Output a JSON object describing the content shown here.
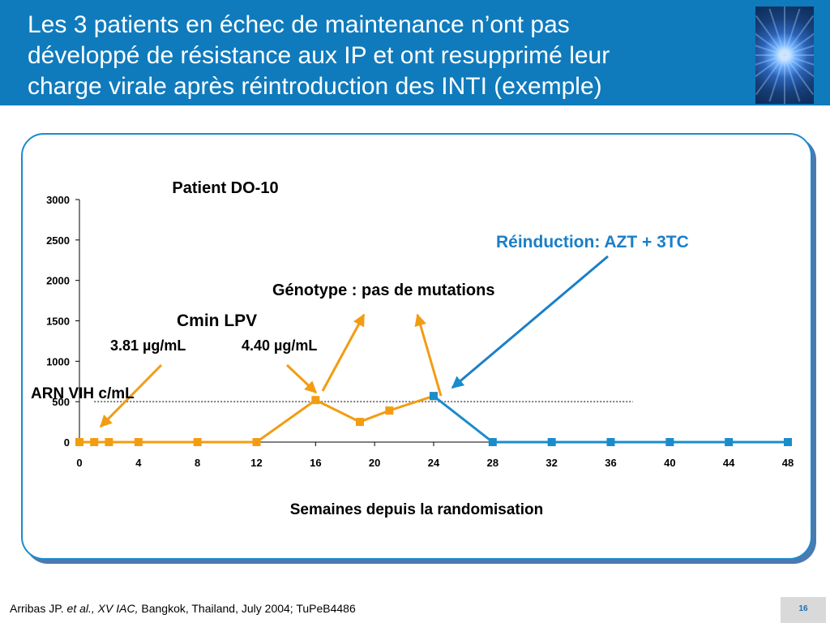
{
  "slide": {
    "title_lines": [
      "Les 3 patients en échec de maintenance n’ont pas",
      "développé de résistance aux IP et ont resupprimé leur",
      "charge virale après réintroduction des INTI (exemple)"
    ],
    "footer": {
      "author": "Arribas JP. ",
      "etal": "et al., XV IAC,",
      "rest": " Bangkok, Thailand, July 2004; TuPeB4486"
    },
    "page_number": "16"
  },
  "colors": {
    "header": "#0f7bbd",
    "orange": "#f39c12",
    "blue": "#1a8ccc",
    "annotation_blue": "#1a7fc8"
  },
  "chart_data": {
    "type": "line",
    "title": "Patient DO-10",
    "xlabel": "Semaines depuis la randomisation",
    "ylabel": "ARN VIH c/mL",
    "xlim": [
      0,
      48
    ],
    "ylim": [
      0,
      3000
    ],
    "x_ticks": [
      0,
      4,
      8,
      12,
      16,
      20,
      24,
      28,
      32,
      36,
      40,
      44,
      48
    ],
    "y_ticks": [
      0,
      500,
      1000,
      1500,
      2000,
      2500,
      3000
    ],
    "threshold_line": {
      "y": 500,
      "x_from": 1,
      "x_to": 37.5,
      "style": "dotted"
    },
    "series": [
      {
        "color": "#f39c12",
        "points": [
          [
            0,
            0
          ],
          [
            1,
            0
          ],
          [
            2,
            0
          ],
          [
            4,
            0
          ],
          [
            8,
            0
          ],
          [
            12,
            0
          ],
          [
            16,
            520
          ],
          [
            19,
            250
          ],
          [
            21,
            390
          ],
          [
            24,
            570
          ]
        ]
      },
      {
        "color": "#1a8ccc",
        "points": [
          [
            24,
            570
          ],
          [
            28,
            0
          ],
          [
            32,
            0
          ],
          [
            36,
            0
          ],
          [
            40,
            0
          ],
          [
            44,
            0
          ],
          [
            48,
            0
          ]
        ]
      }
    ],
    "annotations": {
      "cmin_title": "Cmin LPV",
      "cmin_value1": "3.81 µg/mL",
      "cmin_value2": "4.40 µg/mL",
      "genotype": "Génotype : pas de mutations",
      "reinduction": "Réinduction: AZT + 3TC"
    }
  }
}
